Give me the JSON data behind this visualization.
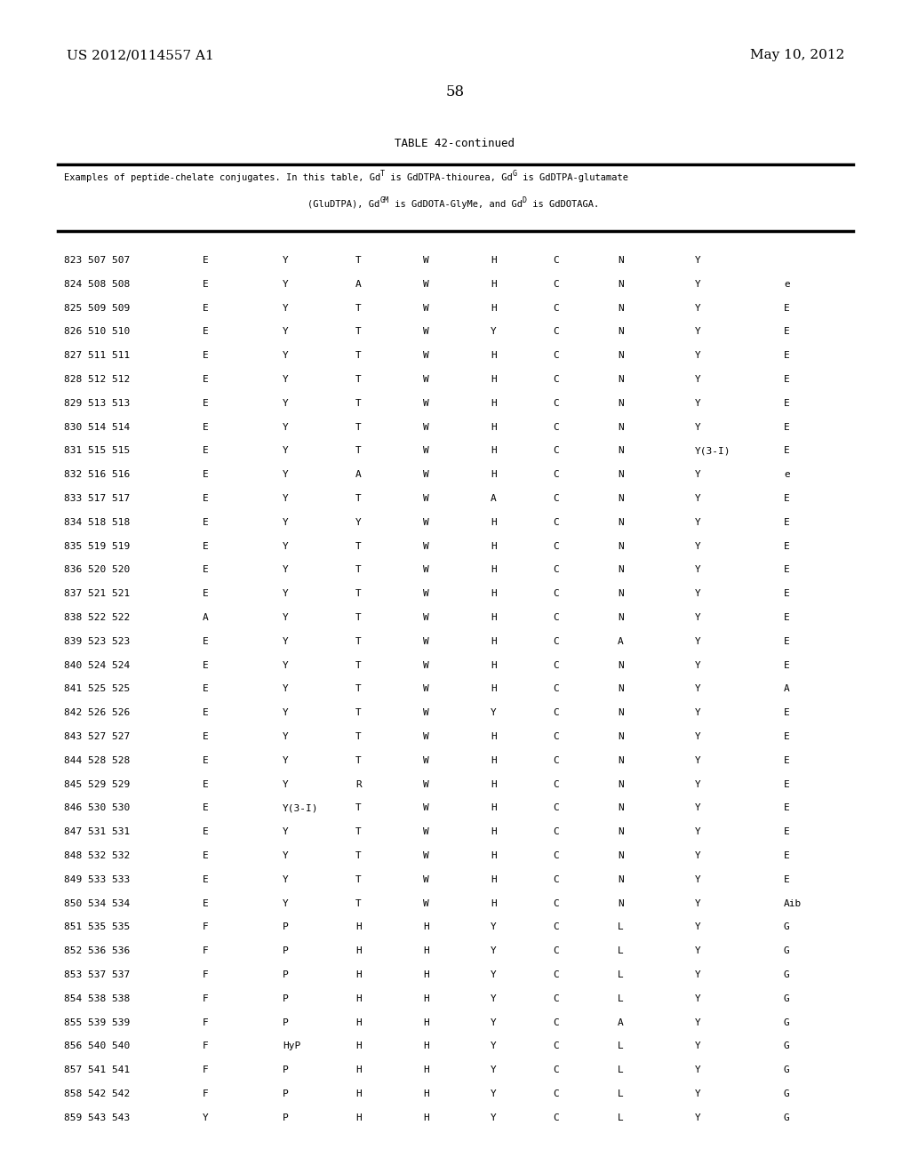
{
  "header_left": "US 2012/0114557 A1",
  "header_right": "May 10, 2012",
  "page_number": "58",
  "table_title": "TABLE 42-continued",
  "caption_line1": "Examples of peptide-chelate conjugates. In this table, Gd",
  "caption_sup1": "T",
  "caption_mid1": " is GdDTPA-thiourea, Gd",
  "caption_sup2": "G",
  "caption_end1": " is GdDTPA-glutamate",
  "caption_line2a": "(GluDTPA), Gd",
  "caption_sup3": "GM",
  "caption_mid2": " is GdDOTA-GlyMe, and Gd",
  "caption_sup4": "D",
  "caption_end2": " is GdDOTAGA.",
  "rows": [
    [
      "823 507 507",
      "E",
      "Y",
      "T",
      "W",
      "H",
      "C",
      "N",
      "Y",
      ""
    ],
    [
      "824 508 508",
      "E",
      "Y",
      "A",
      "W",
      "H",
      "C",
      "N",
      "Y",
      "e"
    ],
    [
      "825 509 509",
      "E",
      "Y",
      "T",
      "W",
      "H",
      "C",
      "N",
      "Y",
      "E"
    ],
    [
      "826 510 510",
      "E",
      "Y",
      "T",
      "W",
      "Y",
      "C",
      "N",
      "Y",
      "E"
    ],
    [
      "827 511 511",
      "E",
      "Y",
      "T",
      "W",
      "H",
      "C",
      "N",
      "Y",
      "E"
    ],
    [
      "828 512 512",
      "E",
      "Y",
      "T",
      "W",
      "H",
      "C",
      "N",
      "Y",
      "E"
    ],
    [
      "829 513 513",
      "E",
      "Y",
      "T",
      "W",
      "H",
      "C",
      "N",
      "Y",
      "E"
    ],
    [
      "830 514 514",
      "E",
      "Y",
      "T",
      "W",
      "H",
      "C",
      "N",
      "Y",
      "E"
    ],
    [
      "831 515 515",
      "E",
      "Y",
      "T",
      "W",
      "H",
      "C",
      "N",
      "Y(3-I)",
      "E"
    ],
    [
      "832 516 516",
      "E",
      "Y",
      "A",
      "W",
      "H",
      "C",
      "N",
      "Y",
      "e"
    ],
    [
      "833 517 517",
      "E",
      "Y",
      "T",
      "W",
      "A",
      "C",
      "N",
      "Y",
      "E"
    ],
    [
      "834 518 518",
      "E",
      "Y",
      "Y",
      "W",
      "H",
      "C",
      "N",
      "Y",
      "E"
    ],
    [
      "835 519 519",
      "E",
      "Y",
      "T",
      "W",
      "H",
      "C",
      "N",
      "Y",
      "E"
    ],
    [
      "836 520 520",
      "E",
      "Y",
      "T",
      "W",
      "H",
      "C",
      "N",
      "Y",
      "E"
    ],
    [
      "837 521 521",
      "E",
      "Y",
      "T",
      "W",
      "H",
      "C",
      "N",
      "Y",
      "E"
    ],
    [
      "838 522 522",
      "A",
      "Y",
      "T",
      "W",
      "H",
      "C",
      "N",
      "Y",
      "E"
    ],
    [
      "839 523 523",
      "E",
      "Y",
      "T",
      "W",
      "H",
      "C",
      "A",
      "Y",
      "E"
    ],
    [
      "840 524 524",
      "E",
      "Y",
      "T",
      "W",
      "H",
      "C",
      "N",
      "Y",
      "E"
    ],
    [
      "841 525 525",
      "E",
      "Y",
      "T",
      "W",
      "H",
      "C",
      "N",
      "Y",
      "A"
    ],
    [
      "842 526 526",
      "E",
      "Y",
      "T",
      "W",
      "Y",
      "C",
      "N",
      "Y",
      "E"
    ],
    [
      "843 527 527",
      "E",
      "Y",
      "T",
      "W",
      "H",
      "C",
      "N",
      "Y",
      "E"
    ],
    [
      "844 528 528",
      "E",
      "Y",
      "T",
      "W",
      "H",
      "C",
      "N",
      "Y",
      "E"
    ],
    [
      "845 529 529",
      "E",
      "Y",
      "R",
      "W",
      "H",
      "C",
      "N",
      "Y",
      "E"
    ],
    [
      "846 530 530",
      "E",
      "Y(3-I)",
      "T",
      "W",
      "H",
      "C",
      "N",
      "Y",
      "E"
    ],
    [
      "847 531 531",
      "E",
      "Y",
      "T",
      "W",
      "H",
      "C",
      "N",
      "Y",
      "E"
    ],
    [
      "848 532 532",
      "E",
      "Y",
      "T",
      "W",
      "H",
      "C",
      "N",
      "Y",
      "E"
    ],
    [
      "849 533 533",
      "E",
      "Y",
      "T",
      "W",
      "H",
      "C",
      "N",
      "Y",
      "E"
    ],
    [
      "850 534 534",
      "E",
      "Y",
      "T",
      "W",
      "H",
      "C",
      "N",
      "Y",
      "Aib"
    ],
    [
      "851 535 535",
      "F",
      "P",
      "H",
      "H",
      "Y",
      "C",
      "L",
      "Y",
      "G"
    ],
    [
      "852 536 536",
      "F",
      "P",
      "H",
      "H",
      "Y",
      "C",
      "L",
      "Y",
      "G"
    ],
    [
      "853 537 537",
      "F",
      "P",
      "H",
      "H",
      "Y",
      "C",
      "L",
      "Y",
      "G"
    ],
    [
      "854 538 538",
      "F",
      "P",
      "H",
      "H",
      "Y",
      "C",
      "L",
      "Y",
      "G"
    ],
    [
      "855 539 539",
      "F",
      "P",
      "H",
      "H",
      "Y",
      "C",
      "A",
      "Y",
      "G"
    ],
    [
      "856 540 540",
      "F",
      "HyP",
      "H",
      "H",
      "Y",
      "C",
      "L",
      "Y",
      "G"
    ],
    [
      "857 541 541",
      "F",
      "P",
      "H",
      "H",
      "Y",
      "C",
      "L",
      "Y",
      "G"
    ],
    [
      "858 542 542",
      "F",
      "P",
      "H",
      "H",
      "Y",
      "C",
      "L",
      "Y",
      "G"
    ],
    [
      "859 543 543",
      "Y",
      "P",
      "H",
      "H",
      "Y",
      "C",
      "L",
      "Y",
      "G"
    ]
  ],
  "bg_color": "#ffffff",
  "text_color": "#000000"
}
